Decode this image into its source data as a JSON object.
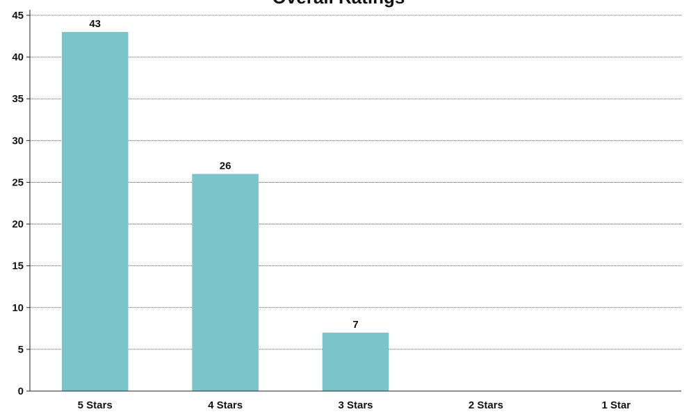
{
  "chart_data": {
    "type": "bar",
    "title": "Overall Ratings",
    "xlabel": "",
    "ylabel": "",
    "categories": [
      "5 Stars",
      "4 Stars",
      "3 Stars",
      "2 Stars",
      "1 Star"
    ],
    "values": [
      43,
      26,
      7,
      0,
      0
    ],
    "data_labels": [
      "43",
      "26",
      "7",
      "",
      ""
    ],
    "ylim": [
      0,
      45
    ],
    "yticks": [
      0,
      5,
      10,
      15,
      20,
      25,
      30,
      35,
      40,
      45
    ],
    "grid": true,
    "legend": "none",
    "bar_color": "#7ac4ca",
    "grid_color": "#555555",
    "axis_color": "#222222"
  }
}
